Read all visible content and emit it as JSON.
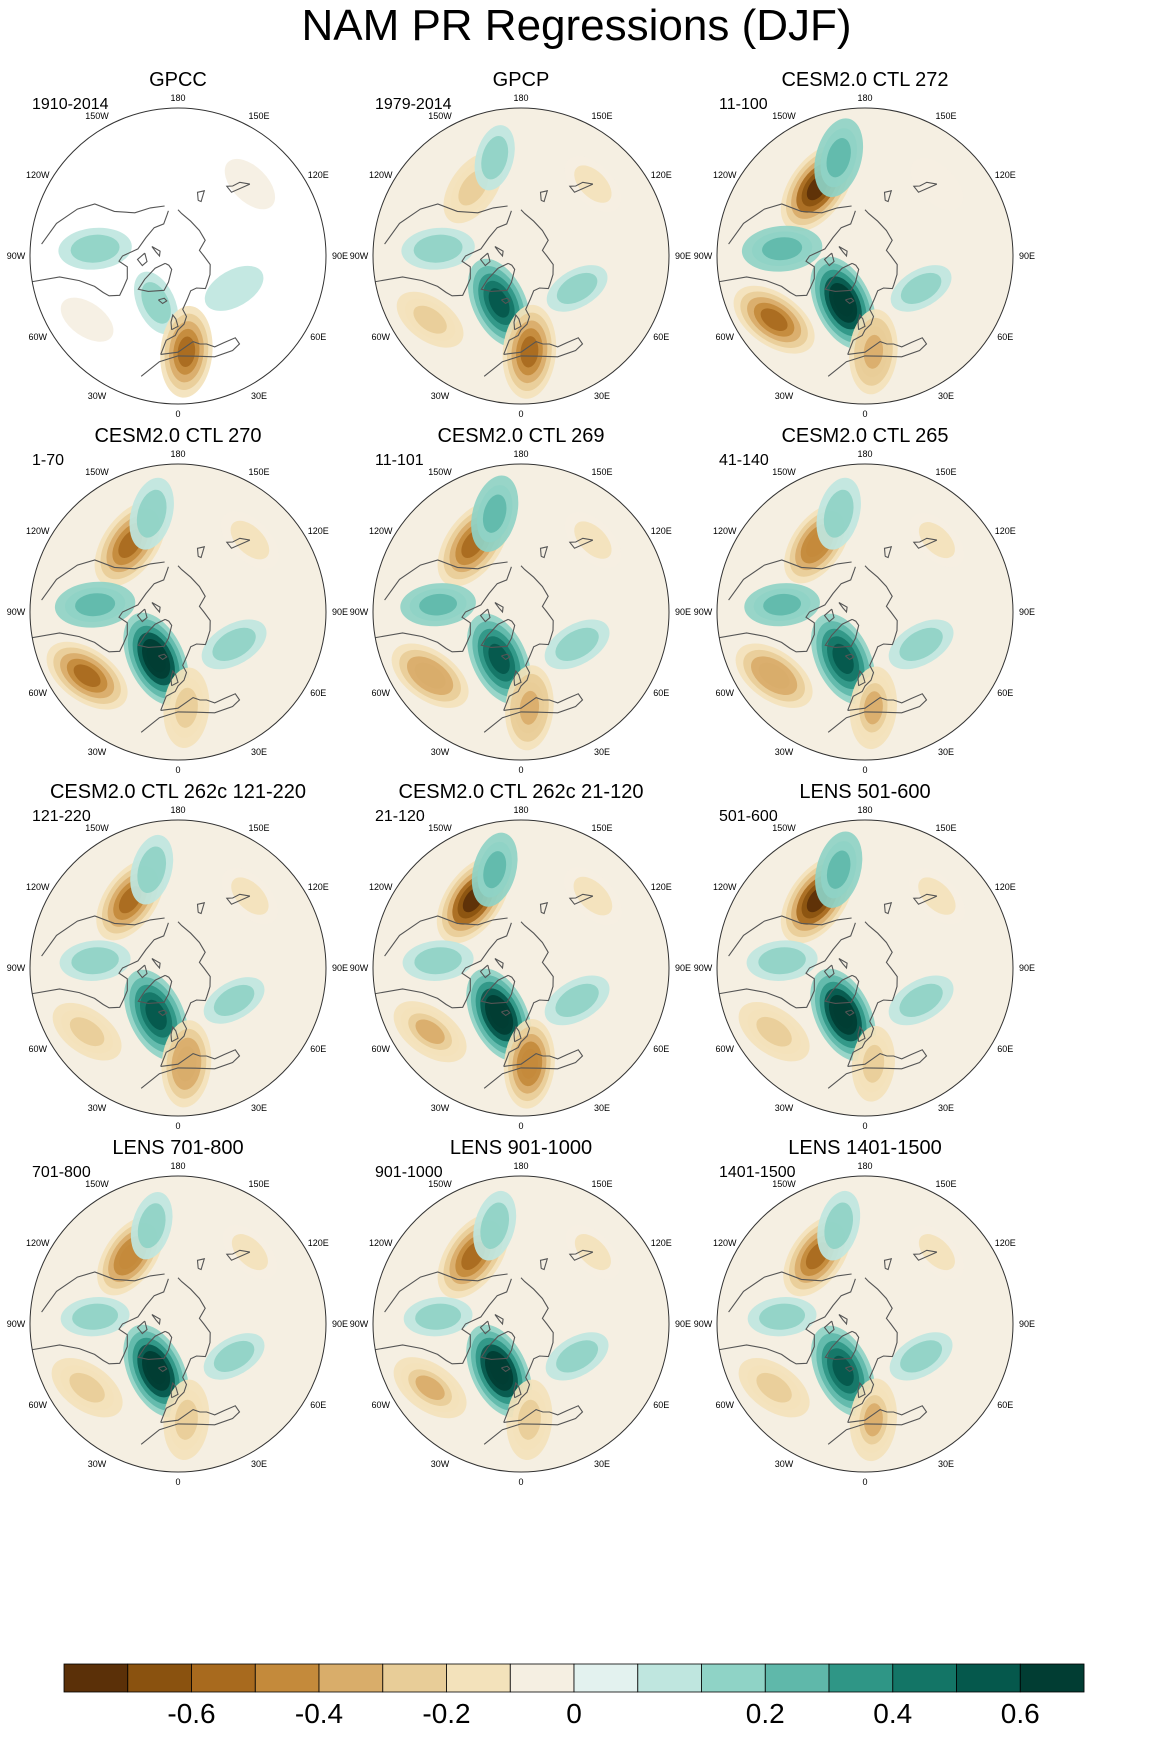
{
  "title": "NAM PR Regressions (DJF)",
  "longitude_labels": [
    "180",
    "150E",
    "120E",
    "90E",
    "60E",
    "30E",
    "0",
    "30W",
    "60W",
    "90W",
    "120W",
    "150W"
  ],
  "colors": {
    "coast": "#555555",
    "rim": "#333333",
    "scale": [
      "#5b3008",
      "#8a520f",
      "#a86a1e",
      "#c48a3b",
      "#d9ad6a",
      "#e8cd98",
      "#f3e2bb",
      "#f5efe2",
      "#e3f2ef",
      "#bfe6df",
      "#8fd3c6",
      "#5fb8aa",
      "#2f9686",
      "#137566",
      "#05584c",
      "#013d33"
    ]
  },
  "chart_data": {
    "type": "heatmap",
    "title": "NAM PR Regressions (DJF)",
    "projection": "north polar stereographic",
    "variable": "PR regressed on NAM index (DJF)",
    "colorbar": {
      "levels": [
        -0.7,
        -0.6,
        -0.5,
        -0.4,
        -0.3,
        -0.2,
        -0.1,
        -0.05,
        0.05,
        0.1,
        0.2,
        0.3,
        0.4,
        0.5,
        0.6,
        0.7
      ],
      "tick_values": [
        -0.6,
        -0.4,
        -0.2,
        0,
        0.2,
        0.4,
        0.6
      ],
      "tick_labels": [
        "-0.6",
        "-0.4",
        "-0.2",
        "0",
        "0.2",
        "0.4",
        "0.6"
      ]
    },
    "panels": [
      {
        "title": "GPCC",
        "period": "1910-2014"
      },
      {
        "title": "GPCP",
        "period": "1979-2014"
      },
      {
        "title": "CESM2.0 CTL 272",
        "period": "11-100"
      },
      {
        "title": "CESM2.0 CTL 270",
        "period": "1-70"
      },
      {
        "title": "CESM2.0 CTL 269",
        "period": "11-101"
      },
      {
        "title": "CESM2.0 CTL 265",
        "period": "41-140"
      },
      {
        "title": "CESM2.0 CTL 262c 121-220",
        "period": "121-220"
      },
      {
        "title": "CESM2.0 CTL 262c 21-120",
        "period": "21-120"
      },
      {
        "title": "LENS 501-600",
        "period": "501-600"
      },
      {
        "title": "LENS 701-800",
        "period": "701-800"
      },
      {
        "title": "LENS 901-1000",
        "period": "901-1000"
      },
      {
        "title": "LENS 1401-1500",
        "period": "1401-1500"
      }
    ],
    "features": [
      {
        "name": "pacific-dry-anomaly",
        "lon": -145,
        "lat": 45,
        "sign": -1,
        "magnitude": [
          0,
          0.55,
          0.95,
          0.9,
          0.9,
          0.75,
          0.8,
          0.95,
          0.95,
          0.75,
          0.9,
          0.8
        ]
      },
      {
        "name": "aleutian-wet-band",
        "lon": -165,
        "lat": 35,
        "sign": 1,
        "magnitude": [
          0,
          0.25,
          0.55,
          0.4,
          0.5,
          0.4,
          0.35,
          0.45,
          0.5,
          0.3,
          0.35,
          0.35
        ]
      },
      {
        "name": "north-atlantic-wet-anomaly",
        "lon": -25,
        "lat": 62,
        "sign": 1,
        "magnitude": [
          0.25,
          0.85,
          0.95,
          0.95,
          0.9,
          0.9,
          0.9,
          0.95,
          0.95,
          0.95,
          0.95,
          0.9
        ]
      },
      {
        "name": "mid-atlantic-dry-band",
        "lon": -55,
        "lat": 30,
        "sign": -1,
        "magnitude": [
          0.1,
          0.45,
          0.8,
          0.8,
          0.7,
          0.7,
          0.5,
          0.6,
          0.55,
          0.55,
          0.6,
          0.55
        ]
      },
      {
        "name": "mediterranean-dry-anomaly",
        "lon": 5,
        "lat": 38,
        "sign": -1,
        "magnitude": [
          0.8,
          0.85,
          0.65,
          0.55,
          0.65,
          0.6,
          0.7,
          0.75,
          0.45,
          0.55,
          0.55,
          0.6
        ]
      },
      {
        "name": "north-america-wet-band",
        "lon": -95,
        "lat": 45,
        "sign": 1,
        "magnitude": [
          0.4,
          0.4,
          0.55,
          0.55,
          0.45,
          0.45,
          0.35,
          0.35,
          0.35,
          0.3,
          0.3,
          0.3
        ]
      },
      {
        "name": "eurasia-wet-anomaly",
        "lon": 60,
        "lat": 55,
        "sign": 1,
        "magnitude": [
          0.2,
          0.25,
          0.25,
          0.35,
          0.35,
          0.35,
          0.25,
          0.35,
          0.35,
          0.25,
          0.3,
          0.3
        ]
      },
      {
        "name": "east-asia-dry-anomaly",
        "lon": 135,
        "lat": 35,
        "sign": -1,
        "magnitude": [
          0.15,
          0.3,
          0.2,
          0.35,
          0.3,
          0.25,
          0.3,
          0.35,
          0.3,
          0.25,
          0.25,
          0.25
        ]
      }
    ]
  }
}
